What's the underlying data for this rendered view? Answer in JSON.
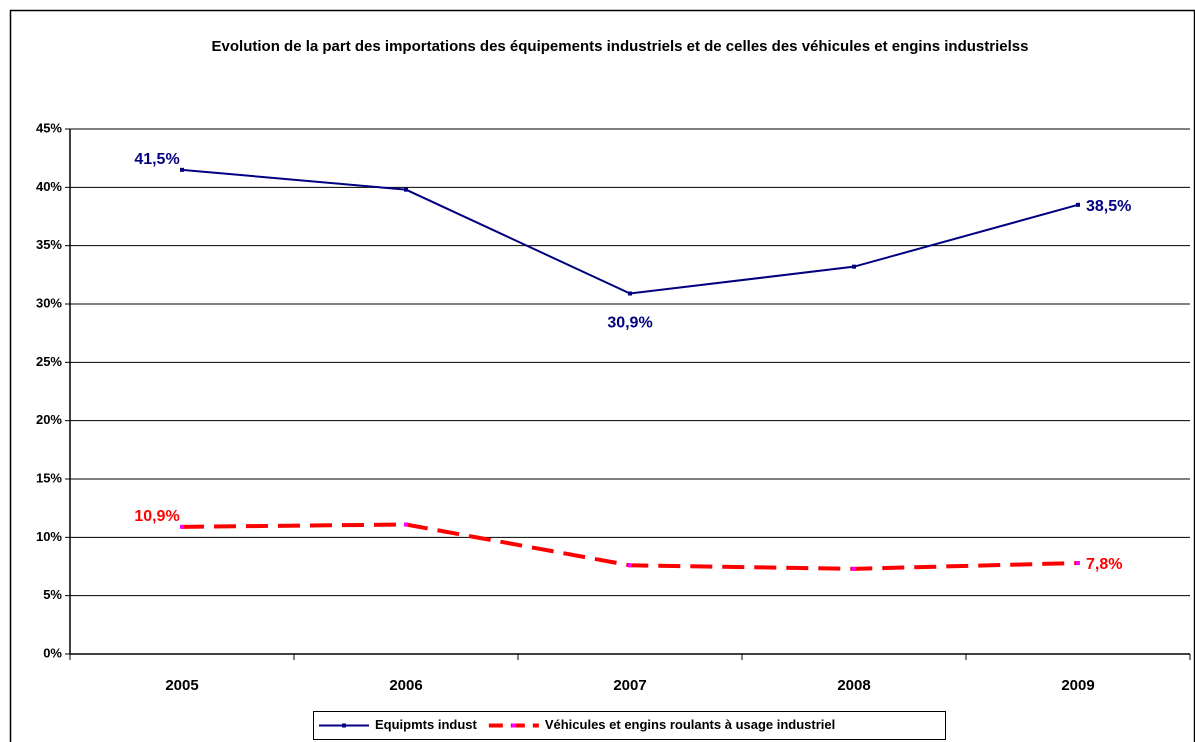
{
  "chart_data": {
    "type": "line",
    "title": "Evolution de la part des importations des équipements industriels et de celles des véhicules et engins industrielss",
    "categories": [
      "2005",
      "2006",
      "2007",
      "2008",
      "2009"
    ],
    "series": [
      {
        "name": "Equipmts indust",
        "color": "#000080",
        "values": [
          41.5,
          39.8,
          30.9,
          33.2,
          38.5
        ],
        "value_labels": [
          "41,5%",
          null,
          "30,9%",
          null,
          "38,5%"
        ]
      },
      {
        "name": "Véhicules et engins roulants à usage industriel",
        "color": "#ff0000",
        "values": [
          10.9,
          11.1,
          7.6,
          7.3,
          7.8
        ],
        "value_labels": [
          "10,9%",
          null,
          null,
          null,
          "7,8%"
        ]
      }
    ],
    "ylim": [
      0,
      45
    ],
    "yticks": [
      {
        "value": 0,
        "label": "0%"
      },
      {
        "value": 5,
        "label": "5%"
      },
      {
        "value": 10,
        "label": "10%"
      },
      {
        "value": 15,
        "label": "15%"
      },
      {
        "value": 20,
        "label": "20%"
      },
      {
        "value": 25,
        "label": "25%"
      },
      {
        "value": 30,
        "label": "30%"
      },
      {
        "value": 35,
        "label": "35%"
      },
      {
        "value": 40,
        "label": "40%"
      },
      {
        "value": 45,
        "label": "45%"
      }
    ],
    "grid": true
  }
}
